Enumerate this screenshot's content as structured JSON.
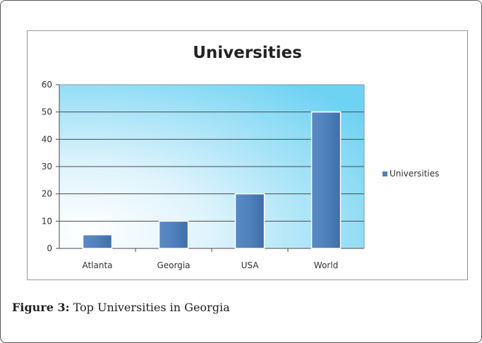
{
  "chart_data": {
    "type": "bar",
    "title": "Universities",
    "categories": [
      "Atlanta",
      "Georgia",
      "USA",
      "World"
    ],
    "series": [
      {
        "name": "Universities",
        "values": [
          5,
          10,
          20,
          50
        ],
        "color": "#4f81bd"
      }
    ],
    "ylim": [
      0,
      60
    ],
    "yticks": [
      "0",
      "10",
      "20",
      "30",
      "40",
      "50",
      "60"
    ],
    "grid": true,
    "legend_position": "right",
    "plot_background": [
      "#ffffff",
      "#6fd3f3"
    ]
  },
  "caption": {
    "label": "Figure 3:",
    "text": " Top Universities in Georgia"
  }
}
